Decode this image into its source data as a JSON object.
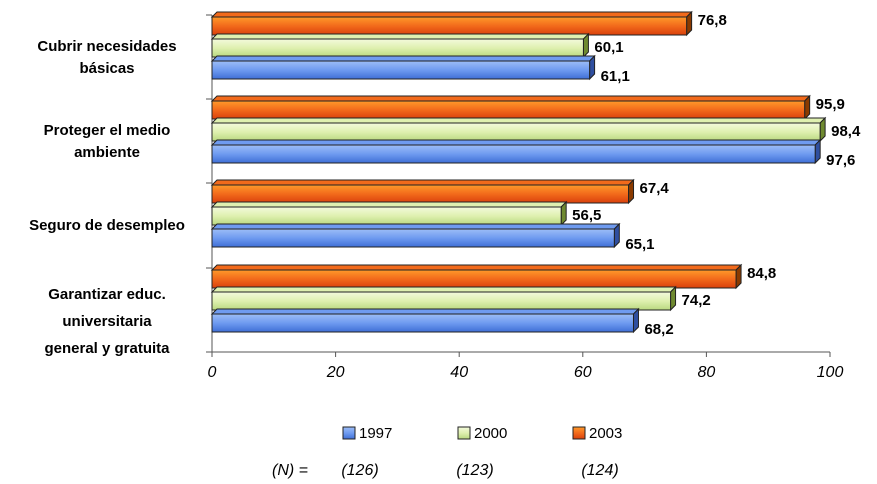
{
  "chart_data": {
    "type": "bar",
    "orientation": "horizontal",
    "categories": [
      [
        "Cubrir necesidades",
        "básicas"
      ],
      [
        "Proteger el medio",
        "ambiente"
      ],
      [
        "Seguro de desempleo"
      ],
      [
        "Garantizar educ.",
        "universitaria",
        "general y gratuita"
      ]
    ],
    "series": [
      {
        "name": "1997",
        "values": [
          61.1,
          97.6,
          65.1,
          68.2
        ],
        "labels": [
          "61,1",
          "97,6",
          "65,1",
          "68,2"
        ],
        "color": "#6f9bf0"
      },
      {
        "name": "2000",
        "values": [
          60.1,
          98.4,
          56.5,
          74.2
        ],
        "labels": [
          "60,1",
          "98,4",
          "56,5",
          "74,2"
        ],
        "color": "#dff0b0"
      },
      {
        "name": "2003",
        "values": [
          76.8,
          95.9,
          67.4,
          84.8
        ],
        "labels": [
          "76,8",
          "95,9",
          "67,4",
          "84,8"
        ],
        "color": "#f26a1b"
      }
    ],
    "xlim": [
      0,
      100
    ],
    "xticks": [
      0,
      20,
      40,
      60,
      80,
      100
    ],
    "legend": {
      "position": "bottom",
      "n_prefix": "(N) =",
      "n_values": [
        "(126)",
        "(123)",
        "(124)"
      ]
    },
    "title": "",
    "xlabel": "",
    "ylabel": ""
  }
}
